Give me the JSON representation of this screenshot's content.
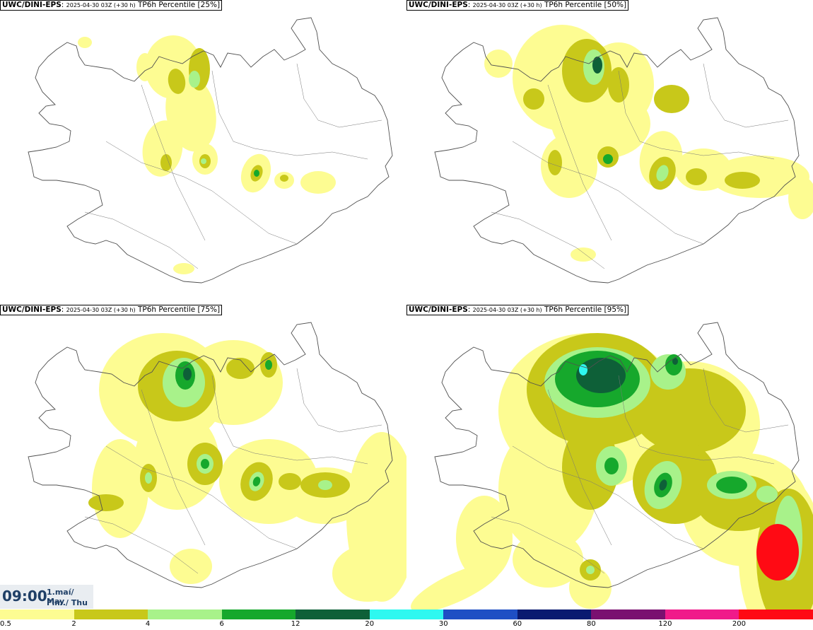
{
  "colors": {
    "ocean": "#ffffff",
    "land_outline": "#505050",
    "precip": [
      "#fdfc92",
      "#c8c81a",
      "#a8f28a",
      "#16a82c",
      "#0e6038",
      "#2ef8f0",
      "#1f4fc4",
      "#0a1a70",
      "#7a1070",
      "#f01a8a",
      "#ff0a14"
    ]
  },
  "panels": [
    {
      "id": "p25",
      "model": "UWC/DINI-EPS",
      "run_info": "2025-04-30 03Z (+30 h)",
      "title": "TP6h Percentile [25%]"
    },
    {
      "id": "p50",
      "model": "UWC/DINI-EPS",
      "run_info": "2025-04-30 03Z (+30 h)",
      "title": "TP6h Percentile [50%]"
    },
    {
      "id": "p75",
      "model": "UWC/DINI-EPS",
      "run_info": "2025-04-30 03Z (+30 h)",
      "title": "TP6h Percentile [75%]"
    },
    {
      "id": "p95",
      "model": "UWC/DINI-EPS",
      "run_info": "2025-04-30 03Z (+30 h)",
      "title": "TP6h Percentile [95%]"
    }
  ],
  "timestamp": {
    "time": "09:00",
    "date_line1": "1.maí/ May",
    "date_line2": "Fim./ Thu"
  },
  "legend": {
    "swatches": [
      "#fdfc92",
      "#c8c81a",
      "#a8f28a",
      "#16a82c",
      "#0e6038",
      "#2ef8f0",
      "#1f4fc4",
      "#0a1a70",
      "#7a1070",
      "#f01a8a",
      "#ff0a14"
    ],
    "ticks": [
      "0.5",
      "2",
      "4",
      "6",
      "12",
      "20",
      "30",
      "60",
      "80",
      "120",
      "200"
    ]
  }
}
